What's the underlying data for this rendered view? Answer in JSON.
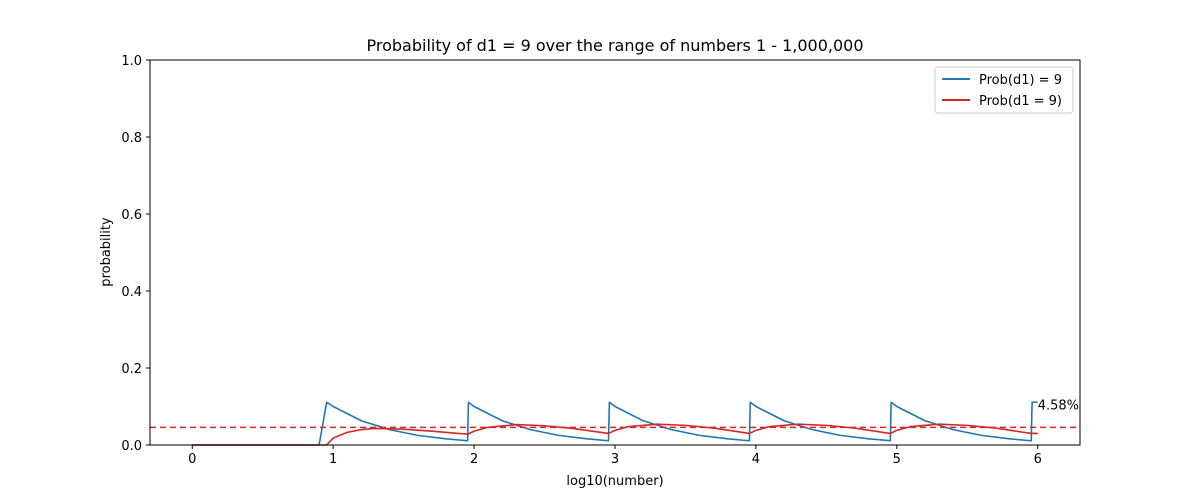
{
  "chart_data": {
    "type": "line",
    "title": "Probability of d1 = 9 over the range of numbers 1 - 1,000,000",
    "xlabel": "log10(number)",
    "ylabel": "probability",
    "xlim": [
      -0.3,
      6.3
    ],
    "ylim": [
      0.0,
      1.0
    ],
    "xticks": [
      0,
      1,
      2,
      3,
      4,
      5,
      6
    ],
    "xtick_labels": [
      "0",
      "1",
      "2",
      "3",
      "4",
      "5",
      "6"
    ],
    "yticks": [
      0.0,
      0.2,
      0.4,
      0.6,
      0.8,
      1.0
    ],
    "ytick_labels": [
      "0.0",
      "0.2",
      "0.4",
      "0.6",
      "0.8",
      "1.0"
    ],
    "grid": false,
    "legend_position": "top-right",
    "series": [
      {
        "name": "Prob(d1) = 9",
        "color": "#1f77b4",
        "x": [
          0.0,
          0.9,
          0.954,
          1.0,
          1.2,
          1.4,
          1.6,
          1.8,
          1.954,
          1.96,
          2.0,
          2.2,
          2.4,
          2.6,
          2.8,
          2.954,
          2.96,
          3.0,
          3.2,
          3.4,
          3.6,
          3.8,
          3.954,
          3.96,
          4.0,
          4.2,
          4.4,
          4.6,
          4.8,
          4.954,
          4.96,
          5.0,
          5.2,
          5.4,
          5.6,
          5.8,
          5.954,
          5.96,
          6.0
        ],
        "y": [
          0.0,
          0.0,
          0.111,
          0.1,
          0.063,
          0.04,
          0.025,
          0.016,
          0.011,
          0.111,
          0.1,
          0.063,
          0.04,
          0.025,
          0.016,
          0.011,
          0.111,
          0.1,
          0.063,
          0.04,
          0.025,
          0.016,
          0.011,
          0.111,
          0.1,
          0.063,
          0.04,
          0.025,
          0.016,
          0.011,
          0.111,
          0.1,
          0.063,
          0.04,
          0.025,
          0.016,
          0.011,
          0.111,
          0.111
        ]
      },
      {
        "name": "Prob(d1 = 9)",
        "color": "#d62728",
        "x": [
          0.0,
          0.9,
          0.954,
          1.0,
          1.1,
          1.2,
          1.3,
          1.5,
          1.7,
          1.954,
          2.0,
          2.1,
          2.3,
          2.5,
          2.7,
          2.954,
          3.0,
          3.1,
          3.3,
          3.5,
          3.7,
          3.954,
          4.0,
          4.1,
          4.3,
          4.5,
          4.7,
          4.954,
          5.0,
          5.1,
          5.3,
          5.5,
          5.7,
          5.954,
          6.0
        ],
        "y": [
          0.0,
          0.0,
          0.0,
          0.018,
          0.033,
          0.04,
          0.043,
          0.041,
          0.036,
          0.028,
          0.036,
          0.046,
          0.053,
          0.05,
          0.043,
          0.03,
          0.038,
          0.048,
          0.054,
          0.051,
          0.044,
          0.03,
          0.038,
          0.048,
          0.054,
          0.051,
          0.044,
          0.03,
          0.038,
          0.048,
          0.054,
          0.051,
          0.044,
          0.03,
          0.03
        ]
      }
    ],
    "reference_line": {
      "y": 0.0458,
      "color": "#d62728",
      "style": "dashed"
    },
    "annotation": {
      "text": "4.58%",
      "x": 6.0,
      "y": 0.0458
    }
  }
}
